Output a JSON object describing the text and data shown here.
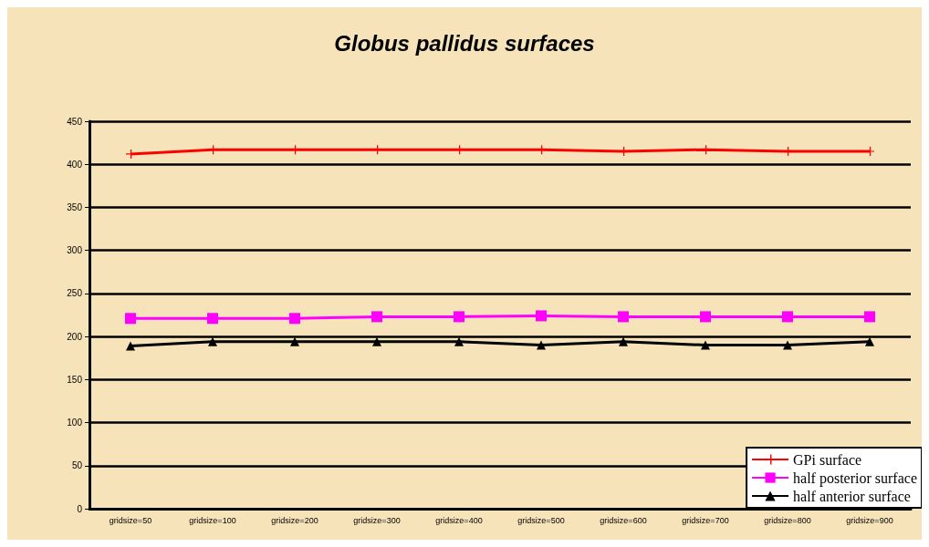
{
  "chart_data": {
    "type": "line",
    "title": "Globus pallidus surfaces",
    "categories": [
      "gridsize=50",
      "gridsize=100",
      "gridsize=200",
      "gridsize=300",
      "gridsize=400",
      "gridsize=500",
      "gridsize=600",
      "gridsize=700",
      "gridsize=800",
      "gridsize=900"
    ],
    "series": [
      {
        "name": "GPi surface",
        "color": "#ff0000",
        "marker": "cross",
        "values": [
          412,
          417,
          417,
          417,
          417,
          417,
          415,
          417,
          415,
          415
        ]
      },
      {
        "name": "half posterior surface",
        "color": "#ff00ff",
        "marker": "square",
        "values": [
          221,
          221,
          221,
          223,
          223,
          224,
          223,
          223,
          223,
          223
        ]
      },
      {
        "name": "half anterior surface",
        "color": "#000000",
        "marker": "triangle",
        "values": [
          189,
          194,
          194,
          194,
          194,
          190,
          194,
          190,
          190,
          194
        ]
      }
    ],
    "ylim": [
      0,
      450
    ],
    "yticks": [
      0,
      50,
      100,
      150,
      200,
      250,
      300,
      350,
      400,
      450
    ],
    "grid": "y",
    "legend": "bottom right"
  }
}
